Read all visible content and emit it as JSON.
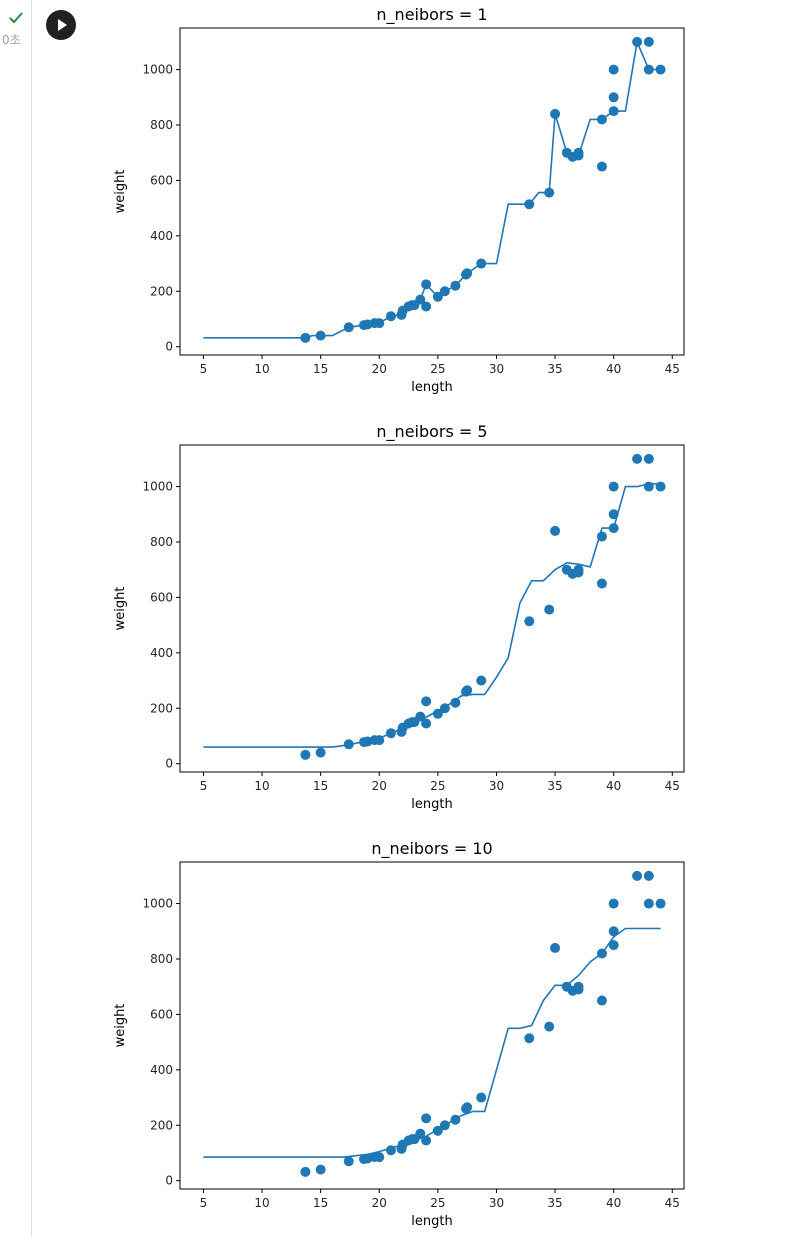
{
  "cell": {
    "status_icon": "check-icon",
    "exec_time": "0초",
    "run_icon": "play-icon",
    "status_color": "#1e8e3e"
  },
  "style": {
    "series_color": "#1f77b4"
  },
  "chart_data": [
    {
      "type": "scatter+line",
      "title": "n_neibors = 1",
      "xlabel": "length",
      "ylabel": "weight",
      "xlim": [
        3,
        46
      ],
      "ylim": [
        -30,
        1150
      ],
      "xticks": [
        5,
        10,
        15,
        20,
        25,
        30,
        35,
        40,
        45
      ],
      "yticks": [
        0,
        200,
        400,
        600,
        800,
        1000
      ],
      "scatter": {
        "x": [
          13.7,
          15.0,
          17.4,
          18.7,
          19.0,
          19.6,
          20.0,
          21.0,
          21.9,
          22.0,
          22.5,
          22.8,
          23.0,
          23.5,
          24.0,
          24.0,
          25.0,
          25.6,
          26.5,
          27.4,
          27.5,
          28.7,
          32.8,
          34.5,
          35.0,
          36.0,
          36.5,
          37.0,
          37.0,
          39.0,
          39.0,
          40.0,
          40.0,
          40.0,
          42.0,
          43.0,
          43.0,
          44.0
        ],
        "y": [
          32,
          40,
          70,
          78,
          80,
          85,
          85,
          110,
          115,
          130,
          145,
          150,
          150,
          170,
          225,
          145,
          180,
          200,
          220,
          260,
          265,
          300,
          514,
          556,
          840,
          700,
          685,
          690,
          700,
          820,
          650,
          1000,
          900,
          850,
          1100,
          1100,
          1000,
          1000
        ]
      },
      "line": {
        "x": [
          5,
          13.7,
          14.3,
          15.0,
          16.0,
          17.4,
          18.7,
          19.0,
          19.6,
          20.0,
          21.0,
          21.9,
          22.0,
          22.5,
          22.8,
          23.0,
          23.5,
          24.0,
          25.0,
          25.6,
          26.5,
          27.4,
          27.5,
          28.7,
          30.0,
          31.0,
          32.8,
          33.6,
          34.5,
          35.0,
          36.0,
          36.5,
          37.0,
          38.0,
          39.0,
          40.0,
          41.0,
          42.0,
          43.0,
          44.0
        ],
        "y": [
          32,
          32,
          40,
          40,
          40,
          70,
          78,
          80,
          85,
          85,
          110,
          115,
          130,
          145,
          150,
          150,
          170,
          225,
          180,
          200,
          220,
          260,
          265,
          300,
          300,
          514,
          514,
          556,
          556,
          840,
          700,
          685,
          690,
          820,
          820,
          850,
          850,
          1100,
          1000,
          1000
        ]
      }
    },
    {
      "type": "scatter+line",
      "title": "n_neibors = 5",
      "xlabel": "length",
      "ylabel": "weight",
      "xlim": [
        3,
        46
      ],
      "ylim": [
        -30,
        1150
      ],
      "xticks": [
        5,
        10,
        15,
        20,
        25,
        30,
        35,
        40,
        45
      ],
      "yticks": [
        0,
        200,
        400,
        600,
        800,
        1000
      ],
      "scatter": {
        "x": [
          13.7,
          15.0,
          17.4,
          18.7,
          19.0,
          19.6,
          20.0,
          21.0,
          21.9,
          22.0,
          22.5,
          22.8,
          23.0,
          23.5,
          24.0,
          24.0,
          25.0,
          25.6,
          26.5,
          27.4,
          27.5,
          28.7,
          32.8,
          34.5,
          35.0,
          36.0,
          36.5,
          37.0,
          37.0,
          39.0,
          39.0,
          40.0,
          40.0,
          40.0,
          42.0,
          43.0,
          43.0,
          44.0
        ],
        "y": [
          32,
          40,
          70,
          78,
          80,
          85,
          85,
          110,
          115,
          130,
          145,
          150,
          150,
          170,
          225,
          145,
          180,
          200,
          220,
          260,
          265,
          300,
          514,
          556,
          840,
          700,
          685,
          690,
          700,
          820,
          650,
          1000,
          900,
          850,
          1100,
          1100,
          1000,
          1000
        ]
      },
      "line": {
        "x": [
          5,
          15.0,
          16.0,
          17.4,
          18.7,
          19.6,
          20.0,
          21.0,
          22.0,
          23.0,
          24.0,
          25.0,
          26.0,
          27.0,
          28.0,
          29.0,
          30.0,
          31.0,
          32.0,
          33.0,
          34.0,
          35.0,
          36.0,
          37.0,
          38.0,
          39.0,
          40.0,
          41.0,
          42.0,
          43.0,
          44.0
        ],
        "y": [
          60,
          60,
          60,
          68,
          80,
          85,
          92,
          110,
          128,
          148,
          168,
          190,
          215,
          245,
          250,
          250,
          312,
          382,
          580,
          660,
          660,
          700,
          725,
          720,
          710,
          850,
          850,
          1000,
          1000,
          1010,
          1010
        ]
      }
    },
    {
      "type": "scatter+line",
      "title": "n_neibors = 10",
      "xlabel": "length",
      "ylabel": "weight",
      "xlim": [
        3,
        46
      ],
      "ylim": [
        -30,
        1150
      ],
      "xticks": [
        5,
        10,
        15,
        20,
        25,
        30,
        35,
        40,
        45
      ],
      "yticks": [
        0,
        200,
        400,
        600,
        800,
        1000
      ],
      "scatter": {
        "x": [
          13.7,
          15.0,
          17.4,
          18.7,
          19.0,
          19.6,
          20.0,
          21.0,
          21.9,
          22.0,
          22.5,
          22.8,
          23.0,
          23.5,
          24.0,
          24.0,
          25.0,
          25.6,
          26.5,
          27.4,
          27.5,
          28.7,
          32.8,
          34.5,
          35.0,
          36.0,
          36.5,
          37.0,
          37.0,
          39.0,
          39.0,
          40.0,
          40.0,
          40.0,
          42.0,
          43.0,
          43.0,
          44.0
        ],
        "y": [
          32,
          40,
          70,
          78,
          80,
          85,
          85,
          110,
          115,
          130,
          145,
          150,
          150,
          170,
          225,
          145,
          180,
          200,
          220,
          260,
          265,
          300,
          514,
          556,
          840,
          700,
          685,
          690,
          700,
          820,
          650,
          1000,
          900,
          850,
          1100,
          1100,
          1000,
          1000
        ]
      },
      "line": {
        "x": [
          5,
          17.0,
          18.0,
          19.0,
          20.0,
          21.0,
          22.0,
          23.0,
          24.0,
          25.0,
          26.0,
          27.0,
          28.0,
          29.0,
          30.0,
          31.0,
          32.0,
          33.0,
          34.0,
          35.0,
          36.0,
          37.0,
          38.0,
          39.0,
          40.0,
          41.0,
          42.0,
          43.0,
          44.0
        ],
        "y": [
          85,
          85,
          90,
          95,
          105,
          118,
          130,
          145,
          160,
          185,
          210,
          235,
          250,
          250,
          400,
          550,
          550,
          560,
          650,
          705,
          705,
          740,
          790,
          820,
          880,
          910,
          910,
          910,
          910
        ]
      }
    }
  ]
}
